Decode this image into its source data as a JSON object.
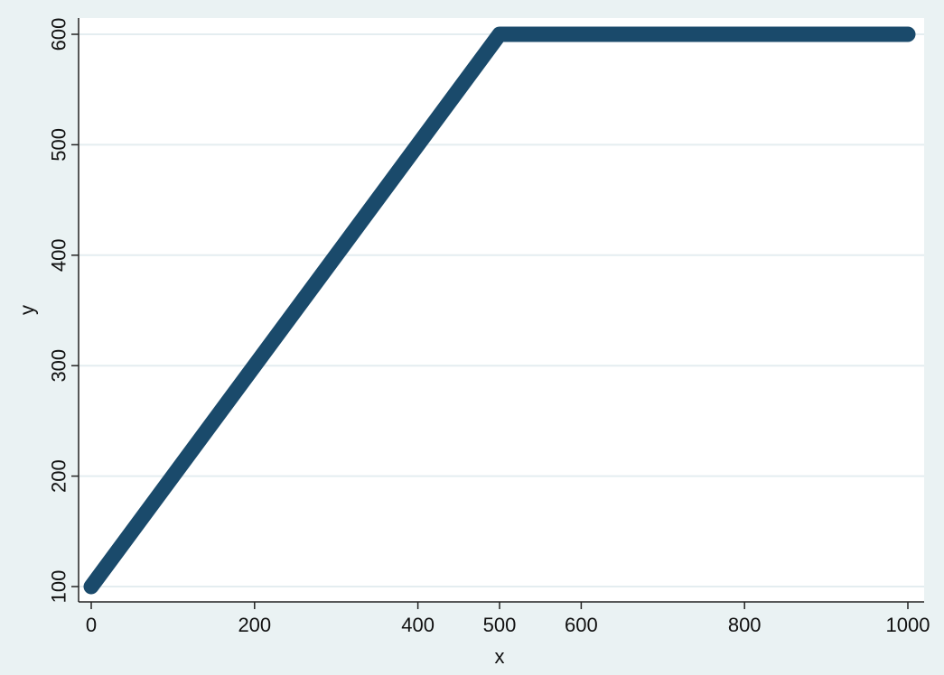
{
  "chart_data": {
    "type": "line",
    "title": "",
    "xlabel": "x",
    "ylabel": "y",
    "xlim": [
      0,
      1000
    ],
    "ylim": [
      100,
      600
    ],
    "x_ticks": [
      0,
      200,
      400,
      500,
      600,
      800,
      1000
    ],
    "y_ticks": [
      100,
      200,
      300,
      400,
      500,
      600
    ],
    "grid": true,
    "legend": "none",
    "series": [
      {
        "x": [
          0,
          500,
          1000
        ],
        "y": [
          100,
          600,
          600
        ],
        "color": "#1a4a6b"
      }
    ],
    "colors": {
      "outer_background": "#eaf2f3",
      "plot_background": "#ffffff",
      "gridline": "#e4edf0",
      "line": "#1a4a6b"
    }
  }
}
